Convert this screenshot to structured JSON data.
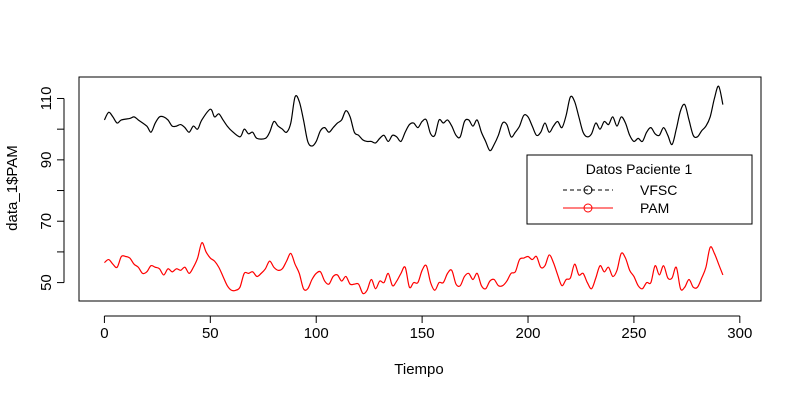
{
  "chart_data": {
    "type": "line",
    "title": "",
    "xlabel": "Tiempo",
    "ylabel": "data_1$PAM",
    "xlim": [
      -12,
      310
    ],
    "ylim": [
      44,
      117
    ],
    "x_ticks": [
      0,
      50,
      100,
      150,
      200,
      250,
      300
    ],
    "y_ticks": [
      50,
      60,
      70,
      80,
      90,
      100,
      110
    ],
    "y_tick_labels": {
      "50": "50",
      "70": "70",
      "90": "90",
      "110": "110"
    },
    "grid": false,
    "legend": {
      "title": "Datos Paciente 1",
      "position": "right",
      "entries": [
        {
          "label": "VFSC",
          "color": "#000000",
          "line": "dashed",
          "marker": "circle"
        },
        {
          "label": "PAM",
          "color": "#ff0000",
          "line": "solid",
          "marker": "circle"
        }
      ]
    },
    "series": [
      {
        "name": "VFSC",
        "color": "#000000",
        "points": [
          [
            0,
            103
          ],
          [
            2,
            105.5
          ],
          [
            4,
            104
          ],
          [
            6,
            102
          ],
          [
            8,
            103
          ],
          [
            12,
            103.5
          ],
          [
            14,
            104
          ],
          [
            16,
            103
          ],
          [
            20,
            101
          ],
          [
            22,
            99
          ],
          [
            24,
            102
          ],
          [
            26,
            104
          ],
          [
            28,
            104
          ],
          [
            30,
            103
          ],
          [
            32,
            101
          ],
          [
            34,
            101
          ],
          [
            36,
            101.5
          ],
          [
            38,
            100.5
          ],
          [
            40,
            99
          ],
          [
            42,
            101
          ],
          [
            44,
            100
          ],
          [
            46,
            103
          ],
          [
            50,
            106.5
          ],
          [
            52,
            104
          ],
          [
            54,
            105
          ],
          [
            56,
            103
          ],
          [
            58,
            101
          ],
          [
            60,
            99.5
          ],
          [
            64,
            97.5
          ],
          [
            66,
            100
          ],
          [
            68,
            98.5
          ],
          [
            70,
            99
          ],
          [
            72,
            97
          ],
          [
            76,
            97
          ],
          [
            78,
            99
          ],
          [
            80,
            102.5
          ],
          [
            82,
            101
          ],
          [
            84,
            100
          ],
          [
            86,
            99
          ],
          [
            88,
            102
          ],
          [
            90,
            110.5
          ],
          [
            92,
            109
          ],
          [
            94,
            103
          ],
          [
            96,
            96
          ],
          [
            98,
            94.5
          ],
          [
            100,
            96
          ],
          [
            102,
            99.5
          ],
          [
            104,
            100.5
          ],
          [
            106,
            99
          ],
          [
            108,
            100.5
          ],
          [
            110,
            102
          ],
          [
            112,
            103
          ],
          [
            114,
            106
          ],
          [
            116,
            104
          ],
          [
            118,
            99
          ],
          [
            120,
            98
          ],
          [
            122,
            96.5
          ],
          [
            124,
            96
          ],
          [
            126,
            96
          ],
          [
            128,
            95.5
          ],
          [
            130,
            97
          ],
          [
            132,
            98
          ],
          [
            134,
            96
          ],
          [
            136,
            98
          ],
          [
            138,
            97.5
          ],
          [
            140,
            96
          ],
          [
            142,
            99
          ],
          [
            144,
            101.5
          ],
          [
            146,
            102
          ],
          [
            148,
            100.5
          ],
          [
            150,
            102.5
          ],
          [
            152,
            103
          ],
          [
            154,
            98.5
          ],
          [
            156,
            98
          ],
          [
            158,
            103
          ],
          [
            160,
            102
          ],
          [
            162,
            103
          ],
          [
            164,
            101
          ],
          [
            166,
            98
          ],
          [
            168,
            97.5
          ],
          [
            170,
            102.5
          ],
          [
            172,
            103
          ],
          [
            174,
            101
          ],
          [
            176,
            103
          ],
          [
            178,
            99
          ],
          [
            180,
            96
          ],
          [
            182,
            93
          ],
          [
            184,
            95
          ],
          [
            186,
            98
          ],
          [
            188,
            102
          ],
          [
            190,
            101.5
          ],
          [
            192,
            97.5
          ],
          [
            194,
            99
          ],
          [
            196,
            101
          ],
          [
            198,
            104.5
          ],
          [
            200,
            104
          ],
          [
            202,
            101
          ],
          [
            204,
            98
          ],
          [
            206,
            99
          ],
          [
            208,
            102
          ],
          [
            210,
            99
          ],
          [
            212,
            101
          ],
          [
            214,
            102.5
          ],
          [
            216,
            100.5
          ],
          [
            218,
            104.5
          ],
          [
            220,
            110.5
          ],
          [
            222,
            109
          ],
          [
            224,
            104
          ],
          [
            226,
            99
          ],
          [
            228,
            97.5
          ],
          [
            230,
            98.5
          ],
          [
            232,
            102
          ],
          [
            234,
            100
          ],
          [
            236,
            102.5
          ],
          [
            238,
            101.5
          ],
          [
            240,
            104
          ],
          [
            242,
            101
          ],
          [
            244,
            104
          ],
          [
            246,
            102
          ],
          [
            248,
            98
          ],
          [
            250,
            96
          ],
          [
            252,
            97
          ],
          [
            254,
            96
          ],
          [
            256,
            99
          ],
          [
            258,
            100.5
          ],
          [
            260,
            98.5
          ],
          [
            262,
            98
          ],
          [
            264,
            100.5
          ],
          [
            266,
            98
          ],
          [
            268,
            95
          ],
          [
            270,
            100
          ],
          [
            272,
            106
          ],
          [
            274,
            108
          ],
          [
            276,
            103
          ],
          [
            278,
            98
          ],
          [
            280,
            97.5
          ],
          [
            282,
            99.5
          ],
          [
            284,
            101
          ],
          [
            286,
            104
          ],
          [
            288,
            110
          ],
          [
            290,
            114
          ],
          [
            292,
            108
          ]
        ]
      },
      {
        "name": "PAM",
        "color": "#ff0000",
        "points": [
          [
            0,
            56.5
          ],
          [
            2,
            57.5
          ],
          [
            4,
            56
          ],
          [
            6,
            55
          ],
          [
            8,
            58.5
          ],
          [
            10,
            58.5
          ],
          [
            12,
            58
          ],
          [
            14,
            56
          ],
          [
            16,
            55
          ],
          [
            18,
            53
          ],
          [
            20,
            53.5
          ],
          [
            22,
            55.5
          ],
          [
            24,
            55
          ],
          [
            26,
            54.5
          ],
          [
            28,
            52.5
          ],
          [
            30,
            54.5
          ],
          [
            32,
            53.5
          ],
          [
            34,
            54.5
          ],
          [
            36,
            54
          ],
          [
            38,
            55
          ],
          [
            40,
            53
          ],
          [
            42,
            55
          ],
          [
            44,
            58
          ],
          [
            46,
            63
          ],
          [
            48,
            60
          ],
          [
            50,
            58
          ],
          [
            52,
            57
          ],
          [
            54,
            55
          ],
          [
            56,
            52
          ],
          [
            58,
            49
          ],
          [
            60,
            47.5
          ],
          [
            62,
            47.5
          ],
          [
            64,
            48.5
          ],
          [
            66,
            53
          ],
          [
            68,
            53
          ],
          [
            70,
            53.5
          ],
          [
            72,
            52
          ],
          [
            74,
            53
          ],
          [
            76,
            54.5
          ],
          [
            78,
            57
          ],
          [
            80,
            55
          ],
          [
            82,
            54
          ],
          [
            84,
            54.5
          ],
          [
            86,
            57
          ],
          [
            88,
            59.5
          ],
          [
            90,
            56
          ],
          [
            92,
            53
          ],
          [
            94,
            48
          ],
          [
            96,
            48
          ],
          [
            98,
            51
          ],
          [
            100,
            53
          ],
          [
            102,
            53.5
          ],
          [
            104,
            50.5
          ],
          [
            106,
            49.5
          ],
          [
            108,
            52
          ],
          [
            110,
            52.5
          ],
          [
            112,
            50.5
          ],
          [
            114,
            52
          ],
          [
            116,
            49.5
          ],
          [
            118,
            49.5
          ],
          [
            120,
            49.5
          ],
          [
            122,
            46.5
          ],
          [
            124,
            47.5
          ],
          [
            126,
            51
          ],
          [
            128,
            48
          ],
          [
            130,
            50.5
          ],
          [
            132,
            50
          ],
          [
            134,
            53
          ],
          [
            136,
            49
          ],
          [
            138,
            50.5
          ],
          [
            140,
            53
          ],
          [
            142,
            55
          ],
          [
            144,
            48.5
          ],
          [
            146,
            50
          ],
          [
            148,
            50
          ],
          [
            150,
            54
          ],
          [
            152,
            55.5
          ],
          [
            154,
            50
          ],
          [
            156,
            47.5
          ],
          [
            158,
            50
          ],
          [
            160,
            50
          ],
          [
            162,
            53
          ],
          [
            164,
            54
          ],
          [
            166,
            49.5
          ],
          [
            168,
            49
          ],
          [
            170,
            52
          ],
          [
            172,
            53
          ],
          [
            174,
            51
          ],
          [
            176,
            53
          ],
          [
            178,
            49
          ],
          [
            180,
            48
          ],
          [
            182,
            50.5
          ],
          [
            184,
            51
          ],
          [
            186,
            49
          ],
          [
            188,
            49
          ],
          [
            190,
            50.5
          ],
          [
            192,
            53
          ],
          [
            194,
            53.5
          ],
          [
            196,
            57.5
          ],
          [
            198,
            58
          ],
          [
            200,
            58.5
          ],
          [
            202,
            57.5
          ],
          [
            204,
            58.5
          ],
          [
            206,
            55
          ],
          [
            208,
            55.5
          ],
          [
            210,
            59
          ],
          [
            212,
            56.5
          ],
          [
            214,
            52.5
          ],
          [
            216,
            49
          ],
          [
            218,
            51
          ],
          [
            220,
            51.5
          ],
          [
            222,
            56
          ],
          [
            224,
            52.5
          ],
          [
            226,
            53
          ],
          [
            228,
            50
          ],
          [
            230,
            48
          ],
          [
            232,
            51.5
          ],
          [
            234,
            55.5
          ],
          [
            236,
            53.5
          ],
          [
            238,
            55
          ],
          [
            240,
            52
          ],
          [
            242,
            54
          ],
          [
            244,
            59.5
          ],
          [
            246,
            58
          ],
          [
            248,
            54
          ],
          [
            250,
            52
          ],
          [
            252,
            49
          ],
          [
            254,
            48
          ],
          [
            256,
            50
          ],
          [
            258,
            50
          ],
          [
            260,
            55.5
          ],
          [
            262,
            52.5
          ],
          [
            264,
            55.5
          ],
          [
            266,
            51.5
          ],
          [
            268,
            51.5
          ],
          [
            270,
            55
          ],
          [
            272,
            48
          ],
          [
            274,
            48.5
          ],
          [
            276,
            51
          ],
          [
            278,
            48.5
          ],
          [
            280,
            48.5
          ],
          [
            282,
            51.5
          ],
          [
            284,
            55
          ],
          [
            286,
            61.5
          ],
          [
            288,
            59.5
          ],
          [
            290,
            56
          ],
          [
            292,
            52.5
          ]
        ]
      }
    ]
  }
}
